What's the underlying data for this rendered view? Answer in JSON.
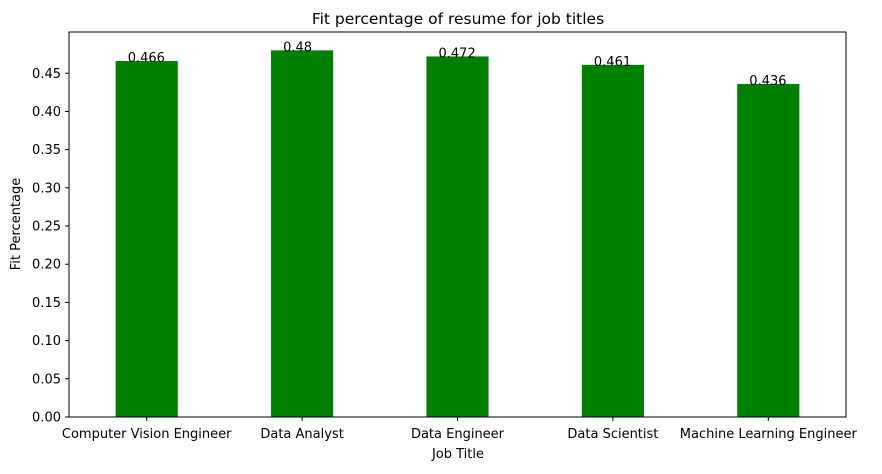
{
  "chart_data": {
    "type": "bar",
    "title": "Fit percentage of resume for job titles",
    "xlabel": "Job Title",
    "ylabel": "Fit Percentage",
    "categories": [
      "Computer Vision Engineer",
      "Data Analyst",
      "Data Engineer",
      "Data Scientist",
      "Machine Learning Engineer"
    ],
    "values": [
      0.466,
      0.48,
      0.472,
      0.461,
      0.436
    ],
    "value_labels": [
      "0.466",
      "0.48",
      "0.472",
      "0.461",
      "0.436"
    ],
    "ylim": [
      0,
      0.504
    ],
    "yticks": [
      0.0,
      0.05,
      0.1,
      0.15,
      0.2,
      0.25,
      0.3,
      0.35,
      0.4,
      0.45
    ],
    "ytick_labels": [
      "0.00",
      "0.05",
      "0.10",
      "0.15",
      "0.20",
      "0.25",
      "0.30",
      "0.35",
      "0.40",
      "0.45"
    ],
    "bar_color": "#008000",
    "grid": false,
    "legend": "none"
  }
}
